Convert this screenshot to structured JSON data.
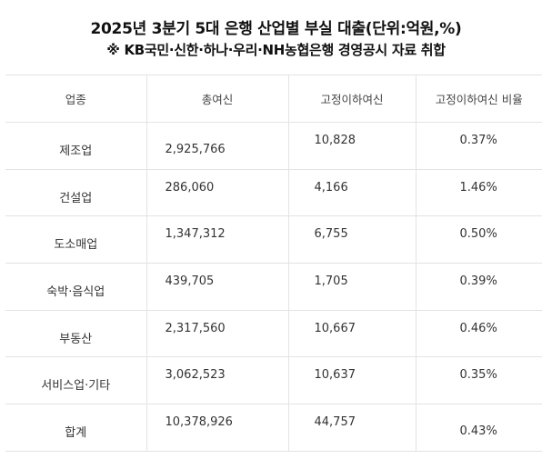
{
  "title": "2025년 3분기 5대 은행 산업별 부실 대출(단위:억원,%)",
  "subtitle": "※ KB국민·신한·하나·우리·NH농협은행 경영공시 자료 취합",
  "table": {
    "headers": [
      "업종",
      "총여신",
      "고정이하여신",
      "고정이하여신 비율"
    ],
    "rows": [
      {
        "category": "제조업",
        "total": "2,925,766",
        "substandard": "10,828",
        "ratio": "0.37%"
      },
      {
        "category": "건설업",
        "total": "286,060",
        "substandard": "4,166",
        "ratio": "1.46%"
      },
      {
        "category": "도소매업",
        "total": "1,347,312",
        "substandard": "6,755",
        "ratio": "0.50%"
      },
      {
        "category": "숙박·음식업",
        "total": "439,705",
        "substandard": "1,705",
        "ratio": "0.39%"
      },
      {
        "category": "부동산",
        "total": "2,317,560",
        "substandard": "10,667",
        "ratio": "0.46%"
      },
      {
        "category": "서비스업·기타",
        "total": "3,062,523",
        "substandard": "10,637",
        "ratio": "0.35%"
      },
      {
        "category": "합계",
        "total": "10,378,926",
        "substandard": "44,757",
        "ratio": "0.43%"
      }
    ]
  }
}
